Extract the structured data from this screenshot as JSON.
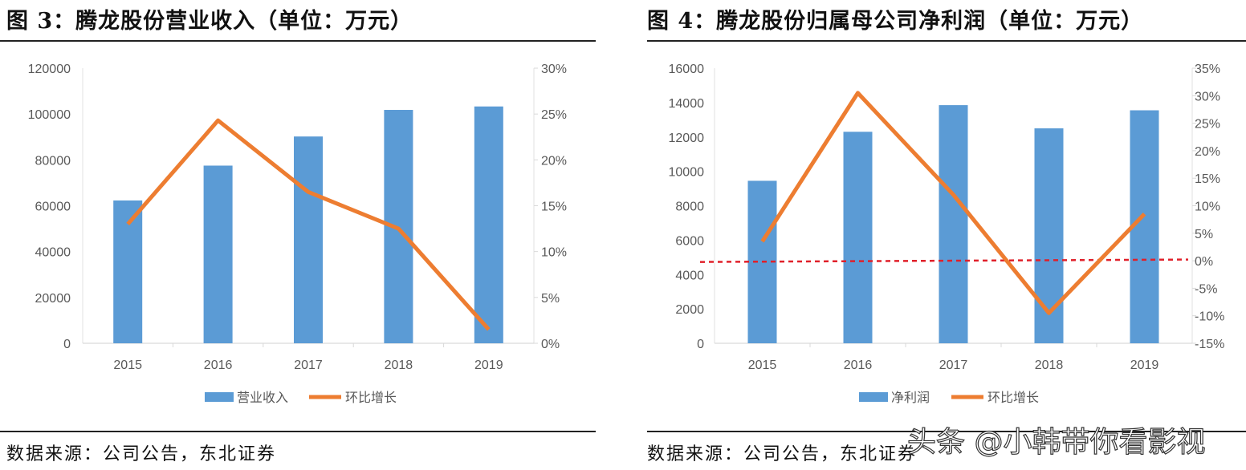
{
  "left": {
    "title": "图 3：腾龙股份营业收入（单位：万元）",
    "source": "数据来源：公司公告，东北证券"
  },
  "right": {
    "title": "图  4：腾龙股份归属母公司净利润（单位：万元）",
    "source": "数据来源：公司公告，东北证券"
  },
  "watermark": "头条 @小韩带你看影视",
  "chart_data": [
    {
      "type": "bar+line",
      "categories": [
        "2015",
        "2016",
        "2017",
        "2018",
        "2019"
      ],
      "series": [
        {
          "name": "营业收入",
          "type": "bar",
          "axis": "left",
          "color": "#5B9BD5",
          "values": [
            62300,
            77500,
            90200,
            101800,
            103300
          ]
        },
        {
          "name": "环比增长",
          "type": "line",
          "axis": "right",
          "color": "#ED7D31",
          "values": [
            13.0,
            24.3,
            16.5,
            12.5,
            1.5
          ]
        }
      ],
      "y_left": {
        "lim": [
          0,
          120000
        ],
        "ticks": [
          "0",
          "20000",
          "40000",
          "60000",
          "80000",
          "100000",
          "120000"
        ]
      },
      "y_right": {
        "lim": [
          0,
          30
        ],
        "ticks": [
          "0%",
          "5%",
          "10%",
          "15%",
          "20%",
          "25%",
          "30%"
        ]
      },
      "grid": false,
      "legend": "bottom"
    },
    {
      "type": "bar+line",
      "categories": [
        "2015",
        "2016",
        "2017",
        "2018",
        "2019"
      ],
      "series": [
        {
          "name": "净利润",
          "type": "bar",
          "axis": "left",
          "color": "#5B9BD5",
          "values": [
            9450,
            12300,
            13850,
            12500,
            13550
          ]
        },
        {
          "name": "环比增长",
          "type": "line",
          "axis": "right",
          "color": "#ED7D31",
          "values": [
            3.5,
            30.5,
            12.0,
            -9.5,
            8.5
          ]
        }
      ],
      "y_left": {
        "lim": [
          0,
          16000
        ],
        "ticks": [
          "0",
          "2000",
          "4000",
          "6000",
          "8000",
          "10000",
          "12000",
          "14000",
          "16000"
        ]
      },
      "y_right": {
        "lim": [
          -15,
          35
        ],
        "ticks": [
          "-15%",
          "-10%",
          "-5%",
          "0%",
          "5%",
          "10%",
          "15%",
          "20%",
          "25%",
          "30%",
          "35%"
        ]
      },
      "reference_line": {
        "value": 0,
        "axis": "right",
        "style": "dashed",
        "color": "#E0202A"
      },
      "grid": false,
      "legend": "bottom"
    }
  ]
}
